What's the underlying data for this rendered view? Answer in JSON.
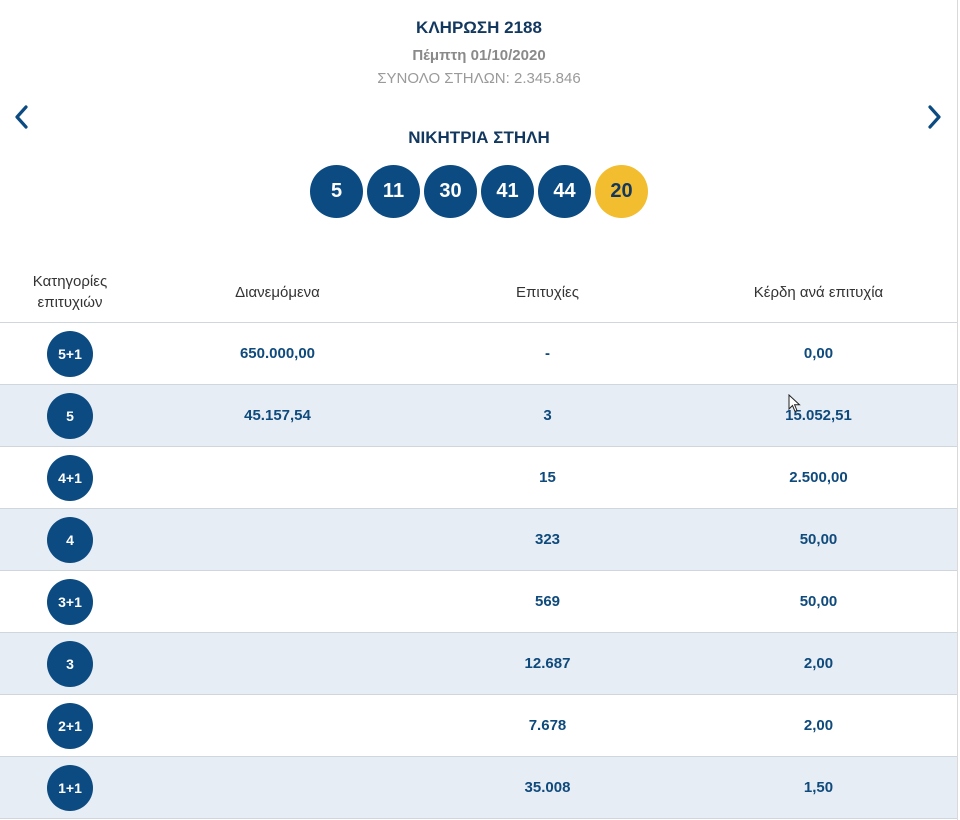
{
  "header": {
    "draw_title": "ΚΛΗΡΩΣΗ 2188",
    "draw_date": "Πέμπτη 01/10/2020",
    "total_columns": "ΣΥΝΟΛΟ ΣΤΗΛΩΝ: 2.345.846",
    "winning_title": "ΝΙΚΗΤΡΙΑ ΣΤΗΛΗ"
  },
  "navigation": {
    "prev_icon": "chevron-left-icon",
    "next_icon": "chevron-right-icon"
  },
  "winning_numbers": {
    "main": [
      "5",
      "11",
      "30",
      "41",
      "44"
    ],
    "joker": "20"
  },
  "colors": {
    "primary": "#0b4b82",
    "joker": "#f2bd2f",
    "row_alt": "#e7edf4"
  },
  "table": {
    "headers": {
      "category_line1": "Κατηγορίες",
      "category_line2": "επιτυχιών",
      "distributed": "Διανεμόμενα",
      "winners": "Επιτυχίες",
      "prize": "Κέρδη ανά επιτυχία"
    },
    "rows": [
      {
        "category": "5+1",
        "distributed": "650.000,00",
        "winners": "-",
        "prize": "0,00"
      },
      {
        "category": "5",
        "distributed": "45.157,54",
        "winners": "3",
        "prize": "15.052,51"
      },
      {
        "category": "4+1",
        "distributed": "",
        "winners": "15",
        "prize": "2.500,00"
      },
      {
        "category": "4",
        "distributed": "",
        "winners": "323",
        "prize": "50,00"
      },
      {
        "category": "3+1",
        "distributed": "",
        "winners": "569",
        "prize": "50,00"
      },
      {
        "category": "3",
        "distributed": "",
        "winners": "12.687",
        "prize": "2,00"
      },
      {
        "category": "2+1",
        "distributed": "",
        "winners": "7.678",
        "prize": "2,00"
      },
      {
        "category": "1+1",
        "distributed": "",
        "winners": "35.008",
        "prize": "1,50"
      }
    ]
  }
}
